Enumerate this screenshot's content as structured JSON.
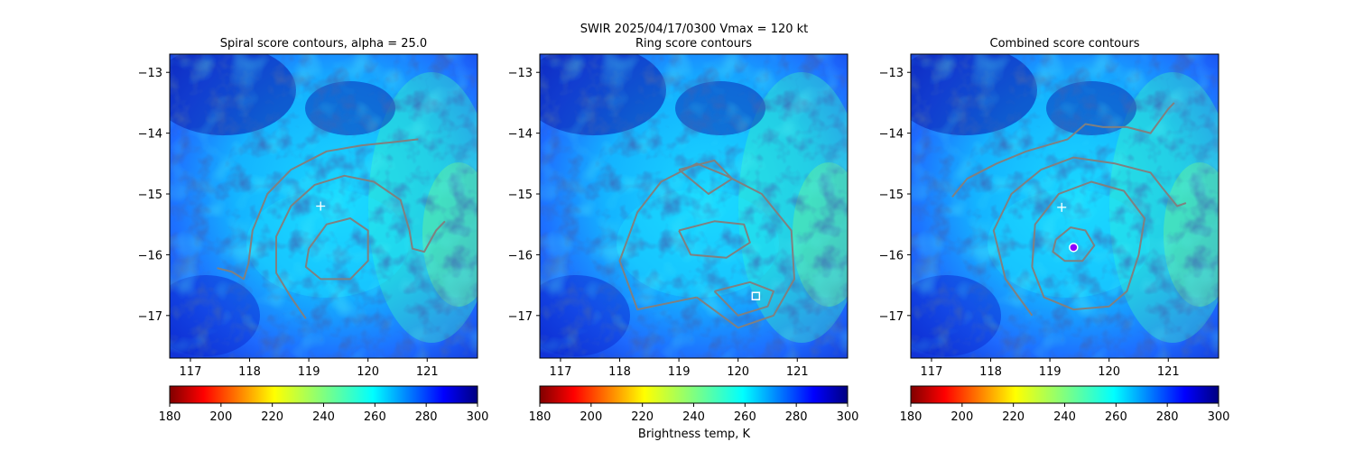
{
  "figure": {
    "suptitle": "SWIR  2025/04/17/0300    Vmax = 120 kt",
    "colorbar_label": "Brightness temp, K",
    "colormap": "jet (reversed)",
    "contour_color": "#808080"
  },
  "chart_data": [
    {
      "type": "heatmap",
      "title": "Spiral score contours, alpha = 25.0",
      "xlim": [
        116.65,
        121.85
      ],
      "ylim": [
        -17.7,
        -12.7
      ],
      "xticks": [
        "117",
        "118",
        "119",
        "120",
        "121"
      ],
      "yticks": [
        "−13",
        "−14",
        "−15",
        "−16",
        "−17"
      ],
      "center_marker": {
        "lon": 119.2,
        "lat": -15.2,
        "symbol": "+",
        "color": "#ffffff"
      },
      "colorbar": {
        "min": 180,
        "max": 300,
        "ticks": [
          "180",
          "200",
          "220",
          "240",
          "260",
          "280",
          "300"
        ]
      },
      "contours": [
        {
          "level": "outer",
          "points": [
            [
              117.45,
              -16.22
            ],
            [
              117.7,
              -16.28
            ],
            [
              117.9,
              -16.4
            ],
            [
              117.98,
              -16.15
            ],
            [
              118.05,
              -15.6
            ],
            [
              118.3,
              -15.0
            ],
            [
              118.7,
              -14.6
            ],
            [
              119.3,
              -14.3
            ],
            [
              119.9,
              -14.2
            ],
            [
              120.4,
              -14.15
            ],
            [
              120.85,
              -14.1
            ]
          ]
        },
        {
          "level": "middle",
          "points": [
            [
              118.95,
              -17.05
            ],
            [
              118.7,
              -16.7
            ],
            [
              118.45,
              -16.3
            ],
            [
              118.45,
              -15.7
            ],
            [
              118.7,
              -15.2
            ],
            [
              119.1,
              -14.85
            ],
            [
              119.6,
              -14.7
            ],
            [
              120.1,
              -14.8
            ],
            [
              120.55,
              -15.1
            ],
            [
              120.7,
              -15.6
            ],
            [
              120.75,
              -15.9
            ],
            [
              120.95,
              -15.95
            ],
            [
              121.15,
              -15.6
            ],
            [
              121.3,
              -15.45
            ]
          ]
        },
        {
          "level": "inner",
          "points": [
            [
              119.0,
              -15.9
            ],
            [
              119.3,
              -15.5
            ],
            [
              119.7,
              -15.4
            ],
            [
              120.0,
              -15.6
            ],
            [
              120.0,
              -16.1
            ],
            [
              119.7,
              -16.4
            ],
            [
              119.2,
              -16.4
            ],
            [
              118.95,
              -16.2
            ],
            [
              119.0,
              -15.9
            ]
          ]
        }
      ],
      "markers": []
    },
    {
      "type": "heatmap",
      "title": "Ring score contours",
      "xlim": [
        116.65,
        121.85
      ],
      "ylim": [
        -17.7,
        -12.7
      ],
      "xticks": [
        "117",
        "118",
        "119",
        "120",
        "121"
      ],
      "yticks": [
        "−13",
        "−14",
        "−15",
        "−16",
        "−17"
      ],
      "colorbar": {
        "min": 180,
        "max": 300,
        "ticks": [
          "180",
          "200",
          "220",
          "240",
          "260",
          "280",
          "300"
        ]
      },
      "contours": [
        {
          "level": "outer",
          "points": [
            [
              119.3,
              -16.7
            ],
            [
              118.3,
              -16.9
            ],
            [
              118.0,
              -16.1
            ],
            [
              118.3,
              -15.3
            ],
            [
              118.7,
              -14.8
            ],
            [
              119.3,
              -14.5
            ],
            [
              119.8,
              -14.7
            ],
            [
              120.4,
              -15.0
            ],
            [
              120.9,
              -15.6
            ],
            [
              120.95,
              -16.4
            ],
            [
              120.6,
              -17.0
            ],
            [
              120.0,
              -17.2
            ],
            [
              119.3,
              -16.7
            ]
          ]
        },
        {
          "level": "patch-a",
          "points": [
            [
              119.0,
              -15.6
            ],
            [
              119.6,
              -15.45
            ],
            [
              120.1,
              -15.5
            ],
            [
              120.2,
              -15.8
            ],
            [
              119.8,
              -16.05
            ],
            [
              119.2,
              -16.0
            ],
            [
              119.0,
              -15.6
            ]
          ]
        },
        {
          "level": "patch-b",
          "points": [
            [
              119.6,
              -16.6
            ],
            [
              120.2,
              -16.45
            ],
            [
              120.6,
              -16.6
            ],
            [
              120.5,
              -16.85
            ],
            [
              120.0,
              -17.0
            ],
            [
              119.6,
              -16.6
            ]
          ]
        },
        {
          "level": "patch-c",
          "points": [
            [
              119.0,
              -14.6
            ],
            [
              119.6,
              -14.45
            ],
            [
              119.9,
              -14.75
            ],
            [
              119.5,
              -15.0
            ],
            [
              119.0,
              -14.6
            ]
          ]
        }
      ],
      "markers": [
        {
          "lon": 120.3,
          "lat": -16.68,
          "symbol": "square",
          "color": "#ffffff"
        }
      ]
    },
    {
      "type": "heatmap",
      "title": "Combined score contours",
      "xlim": [
        116.65,
        121.85
      ],
      "ylim": [
        -17.7,
        -12.7
      ],
      "xticks": [
        "117",
        "118",
        "119",
        "120",
        "121"
      ],
      "yticks": [
        "−13",
        "−14",
        "−15",
        "−16",
        "−17"
      ],
      "center_marker": {
        "lon": 119.2,
        "lat": -15.22,
        "symbol": "+",
        "color": "#ffffff"
      },
      "colorbar": {
        "min": 180,
        "max": 300,
        "ticks": [
          "180",
          "200",
          "220",
          "240",
          "260",
          "280",
          "300"
        ]
      },
      "contours": [
        {
          "level": "outer",
          "points": [
            [
              117.35,
              -15.05
            ],
            [
              117.6,
              -14.75
            ],
            [
              118.1,
              -14.5
            ],
            [
              118.6,
              -14.3
            ],
            [
              119.3,
              -14.1
            ],
            [
              119.6,
              -13.85
            ],
            [
              119.9,
              -13.9
            ],
            [
              120.3,
              -13.9
            ],
            [
              120.7,
              -14.0
            ],
            [
              121.0,
              -13.6
            ],
            [
              121.1,
              -13.5
            ]
          ]
        },
        {
          "level": "outer-2",
          "points": [
            [
              118.7,
              -17.0
            ],
            [
              118.25,
              -16.4
            ],
            [
              118.05,
              -15.6
            ],
            [
              118.35,
              -15.0
            ],
            [
              118.85,
              -14.6
            ],
            [
              119.4,
              -14.4
            ],
            [
              120.1,
              -14.5
            ],
            [
              120.7,
              -14.65
            ],
            [
              120.9,
              -14.9
            ],
            [
              121.15,
              -15.2
            ],
            [
              121.3,
              -15.15
            ]
          ]
        },
        {
          "level": "middle",
          "points": [
            [
              118.7,
              -16.2
            ],
            [
              118.75,
              -15.5
            ],
            [
              119.15,
              -15.0
            ],
            [
              119.7,
              -14.8
            ],
            [
              120.25,
              -14.95
            ],
            [
              120.6,
              -15.4
            ],
            [
              120.5,
              -16.0
            ],
            [
              120.3,
              -16.6
            ],
            [
              120.0,
              -16.85
            ],
            [
              119.4,
              -16.9
            ],
            [
              118.9,
              -16.7
            ],
            [
              118.7,
              -16.2
            ]
          ]
        },
        {
          "level": "inner",
          "points": [
            [
              119.1,
              -15.75
            ],
            [
              119.35,
              -15.55
            ],
            [
              119.6,
              -15.6
            ],
            [
              119.75,
              -15.85
            ],
            [
              119.55,
              -16.1
            ],
            [
              119.25,
              -16.1
            ],
            [
              119.05,
              -15.95
            ],
            [
              119.1,
              -15.75
            ]
          ]
        }
      ],
      "markers": [
        {
          "lon": 119.4,
          "lat": -15.88,
          "symbol": "circle",
          "color": "#8b00ff"
        }
      ]
    }
  ]
}
